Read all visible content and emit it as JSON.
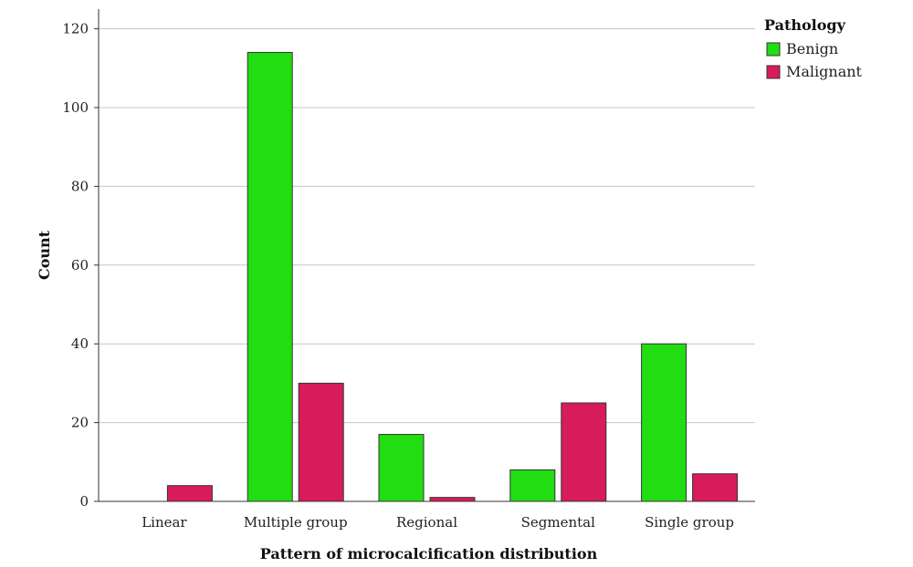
{
  "chart_data": {
    "type": "bar",
    "title": "",
    "xlabel": "Pattern of microcalcification distribution",
    "ylabel": "Count",
    "ylim": [
      0,
      125
    ],
    "yticks": [
      0,
      20,
      40,
      60,
      80,
      100,
      120
    ],
    "grid": true,
    "legend_position": "top-right",
    "legend_title": "Pathology",
    "categories": [
      "Linear",
      "Multiple group",
      "Regional",
      "Segmental",
      "Single group"
    ],
    "series": [
      {
        "name": "Benign",
        "color": "#22dd11",
        "values": [
          0,
          114,
          17,
          8,
          40
        ]
      },
      {
        "name": "Malignant",
        "color": "#d81b5a",
        "values": [
          4,
          30,
          1,
          25,
          7
        ]
      }
    ]
  }
}
